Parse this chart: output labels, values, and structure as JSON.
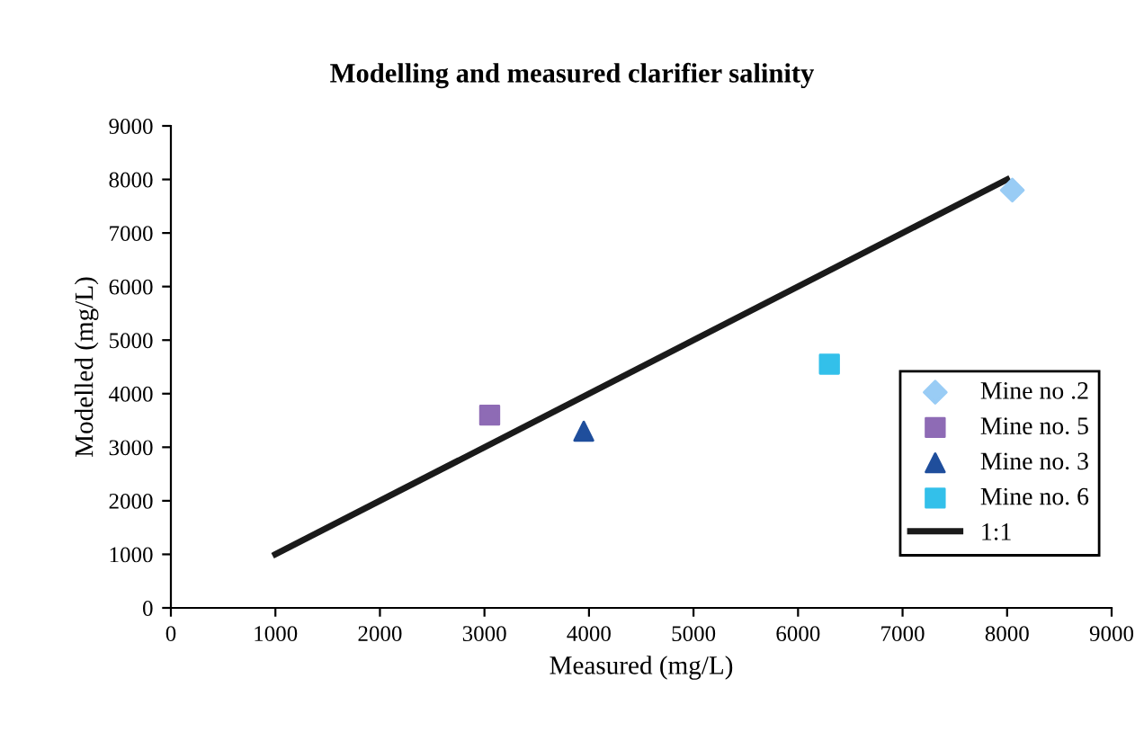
{
  "chart_data": {
    "type": "scatter",
    "title": "Modelling and measured clarifier salinity",
    "xlabel": "Measured (mg/L)",
    "ylabel": "Modelled (mg/L)",
    "xlim": [
      0,
      9000
    ],
    "xticks": [
      0,
      1000,
      2000,
      3000,
      4000,
      5000,
      6000,
      7000,
      8000,
      9000
    ],
    "ylim": [
      0,
      9000
    ],
    "yticks": [
      0,
      1000,
      2000,
      3000,
      4000,
      5000,
      6000,
      7000,
      8000,
      9000
    ],
    "grid": false,
    "legend": "right",
    "series": [
      {
        "name": "Mine no .2",
        "color": "#99ccf5",
        "marker": "diamond",
        "x": [
          8050
        ],
        "values": [
          7800
        ]
      },
      {
        "name": "Mine no. 5",
        "color": "#8e6bb5",
        "marker": "square",
        "x": [
          3050
        ],
        "values": [
          3600
        ]
      },
      {
        "name": "Mine no. 3",
        "color": "#1f4e9c",
        "marker": "triangle",
        "x": [
          3950
        ],
        "values": [
          3300
        ]
      },
      {
        "name": "Mine no. 6",
        "color": "#33c0ea",
        "marker": "square",
        "x": [
          6300
        ],
        "values": [
          4550
        ]
      },
      {
        "name": "1:1",
        "type": "line",
        "color": "#1a1a1a",
        "line_style": "solid",
        "marker": "none",
        "x": [
          1000,
          8000
        ],
        "values": [
          1000,
          8000
        ]
      }
    ]
  }
}
